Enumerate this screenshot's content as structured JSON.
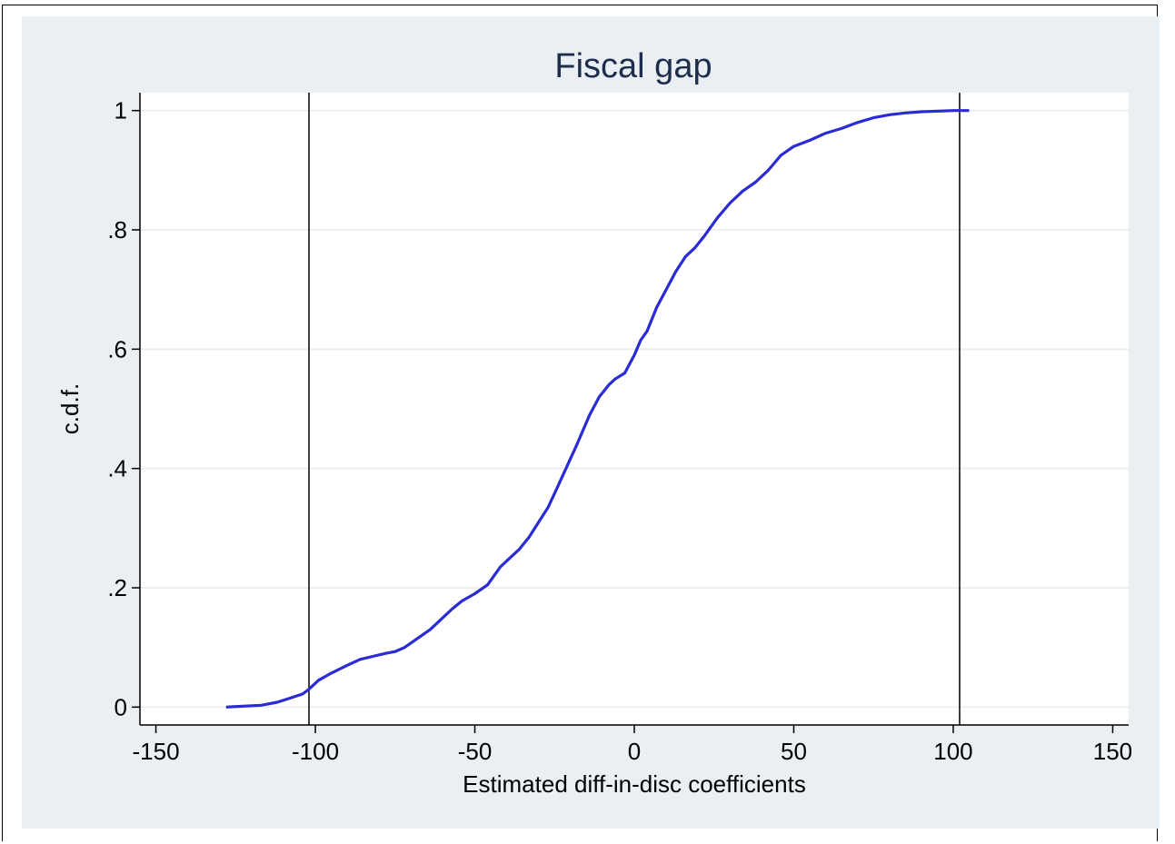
{
  "chart_data": {
    "type": "line",
    "title": "Fiscal gap",
    "xlabel": "Estimated diff-in-disc coefficients",
    "ylabel": "c.d.f.",
    "xlim": [
      -155,
      155
    ],
    "ylim": [
      -0.03,
      1.03
    ],
    "x_ticks": [
      -150,
      -100,
      -50,
      0,
      50,
      100,
      150
    ],
    "x_tick_labels": [
      "-150",
      "-100",
      "-50",
      "0",
      "50",
      "100",
      "150"
    ],
    "y_ticks": [
      0,
      0.2,
      0.4,
      0.6,
      0.8,
      1
    ],
    "y_tick_labels": [
      "0",
      ".2",
      ".4",
      ".6",
      ".8",
      "1"
    ],
    "grid": true,
    "vertical_lines": [
      -102,
      102
    ],
    "colors": {
      "series": "#2b2bd6",
      "grid": "#e9eff3",
      "panel": "#e9eff3",
      "title": "#1e2d4c"
    },
    "series": [
      {
        "x": [
          -128,
          -117,
          -112,
          -108,
          -104,
          -102,
          -99,
          -95,
          -90,
          -86,
          -82,
          -78,
          -75,
          -72,
          -68,
          -64,
          -60,
          -57,
          -54,
          -50,
          -46,
          -44,
          -42,
          -39,
          -36,
          -33,
          -30,
          -27,
          -24,
          -21,
          -18,
          -16,
          -14,
          -11,
          -8,
          -6,
          -3,
          0,
          2,
          4,
          7,
          10,
          13,
          16,
          19,
          22,
          26,
          30,
          34,
          38,
          42,
          46,
          50,
          55,
          60,
          65,
          70,
          75,
          80,
          85,
          90,
          95,
          100,
          105
        ],
        "y": [
          0.0,
          0.003,
          0.008,
          0.015,
          0.022,
          0.03,
          0.045,
          0.057,
          0.07,
          0.08,
          0.085,
          0.09,
          0.093,
          0.1,
          0.115,
          0.13,
          0.15,
          0.165,
          0.178,
          0.19,
          0.205,
          0.22,
          0.235,
          0.25,
          0.265,
          0.285,
          0.31,
          0.335,
          0.37,
          0.405,
          0.44,
          0.465,
          0.49,
          0.52,
          0.54,
          0.55,
          0.56,
          0.59,
          0.615,
          0.63,
          0.67,
          0.7,
          0.73,
          0.755,
          0.77,
          0.79,
          0.82,
          0.845,
          0.865,
          0.88,
          0.9,
          0.925,
          0.94,
          0.95,
          0.962,
          0.97,
          0.98,
          0.988,
          0.993,
          0.996,
          0.998,
          0.999,
          1.0,
          1.0
        ]
      }
    ]
  }
}
